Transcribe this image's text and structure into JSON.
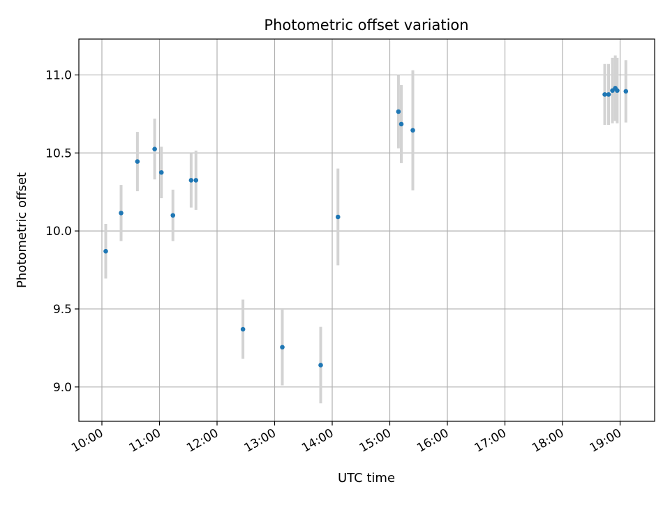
{
  "chart_data": {
    "type": "scatter",
    "title": "Photometric offset variation",
    "xlabel": "UTC time",
    "ylabel": "Photometric offset",
    "x_unit": "hours (UTC)",
    "xlim": [
      "09:36",
      "19:36"
    ],
    "ylim": [
      8.78,
      11.23
    ],
    "grid": true,
    "x_ticks": [
      "10:00",
      "11:00",
      "12:00",
      "13:00",
      "14:00",
      "15:00",
      "16:00",
      "17:00",
      "18:00",
      "19:00"
    ],
    "y_ticks": [
      "9.0",
      "9.5",
      "10.0",
      "10.5",
      "11.0"
    ],
    "marker_color": "#1f77b4",
    "errorbar_color": "#d3d3d3",
    "points": [
      {
        "time": "10:04",
        "y": 9.87,
        "err": 0.175
      },
      {
        "time": "10:20",
        "y": 10.115,
        "err": 0.18
      },
      {
        "time": "10:37",
        "y": 10.445,
        "err": 0.19
      },
      {
        "time": "10:55",
        "y": 10.525,
        "err": 0.195
      },
      {
        "time": "11:02",
        "y": 10.375,
        "err": 0.165
      },
      {
        "time": "11:14",
        "y": 10.1,
        "err": 0.165
      },
      {
        "time": "11:33",
        "y": 10.325,
        "err": 0.175
      },
      {
        "time": "11:38",
        "y": 10.325,
        "err": 0.19
      },
      {
        "time": "12:27",
        "y": 9.37,
        "err": 0.19
      },
      {
        "time": "13:08",
        "y": 9.255,
        "err": 0.245
      },
      {
        "time": "13:48",
        "y": 9.14,
        "err": 0.245
      },
      {
        "time": "14:06",
        "y": 10.09,
        "err": 0.31
      },
      {
        "time": "15:09",
        "y": 10.765,
        "err": 0.235
      },
      {
        "time": "15:12",
        "y": 10.685,
        "err": 0.25
      },
      {
        "time": "15:24",
        "y": 10.645,
        "err": 0.385
      },
      {
        "time": "18:44",
        "y": 10.875,
        "err": 0.195
      },
      {
        "time": "18:48",
        "y": 10.875,
        "err": 0.195
      },
      {
        "time": "18:52",
        "y": 10.9,
        "err": 0.21
      },
      {
        "time": "18:55",
        "y": 10.915,
        "err": 0.21
      },
      {
        "time": "18:57",
        "y": 10.9,
        "err": 0.21
      },
      {
        "time": "19:06",
        "y": 10.895,
        "err": 0.2
      }
    ]
  }
}
